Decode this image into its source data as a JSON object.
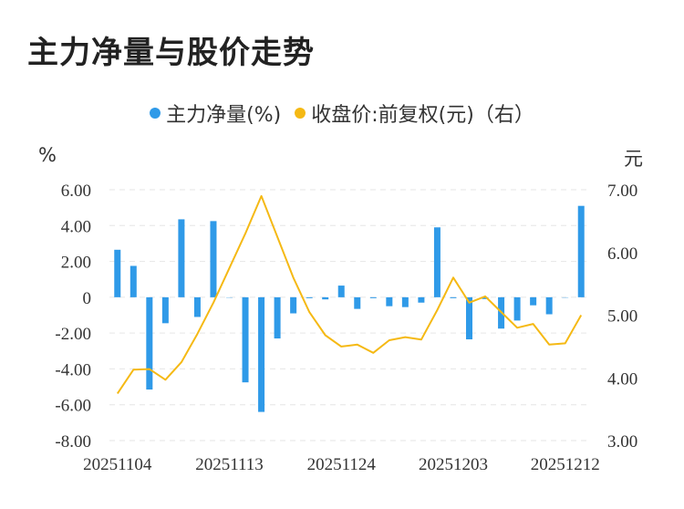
{
  "title": "主力净量与股价走势",
  "legend": {
    "series1": "主力净量(%)",
    "series2": "收盘价:前复权(元)（右）"
  },
  "units": {
    "left": "%",
    "right": "元"
  },
  "colors": {
    "bar": "#2f9ae8",
    "line": "#f5b914",
    "grid": "#e6e6e6"
  },
  "chart_data": {
    "type": "bar+line",
    "x_tick_labels": [
      "20251104",
      "20251113",
      "20251124",
      "20251203",
      "20251212"
    ],
    "x_tick_index": [
      0,
      7,
      14,
      21,
      28
    ],
    "left_axis": {
      "ylim": [
        -8,
        6
      ],
      "ticks": [
        "6.00",
        "4.00",
        "2.00",
        "0",
        "-2.00",
        "-4.00",
        "-6.00",
        "-8.00"
      ]
    },
    "right_axis": {
      "ylim": [
        3,
        7
      ],
      "ticks": [
        "7.00",
        "6.00",
        "5.00",
        "4.00",
        "3.00"
      ]
    },
    "series": [
      {
        "name": "主力净量(%)",
        "axis": "left",
        "type": "bar",
        "values": [
          2.65,
          1.75,
          -5.15,
          -1.45,
          4.35,
          -1.1,
          4.25,
          0,
          -4.75,
          -6.4,
          -2.3,
          -0.9,
          -0.05,
          -0.12,
          0.65,
          -0.65,
          -0.05,
          -0.5,
          -0.55,
          -0.3,
          3.9,
          -0.05,
          -2.35,
          -0.1,
          -1.75,
          -1.3,
          -0.45,
          -0.95,
          0,
          5.1
        ]
      },
      {
        "name": "收盘价:前复权(元)（右）",
        "axis": "right",
        "type": "line",
        "values": [
          3.75,
          4.13,
          4.14,
          3.97,
          4.25,
          4.7,
          5.2,
          5.75,
          6.3,
          6.9,
          6.25,
          5.6,
          5.05,
          4.68,
          4.5,
          4.53,
          4.4,
          4.6,
          4.65,
          4.61,
          5.08,
          5.6,
          5.2,
          5.3,
          5.05,
          4.8,
          4.86,
          4.53,
          4.55,
          5.0
        ]
      }
    ]
  }
}
